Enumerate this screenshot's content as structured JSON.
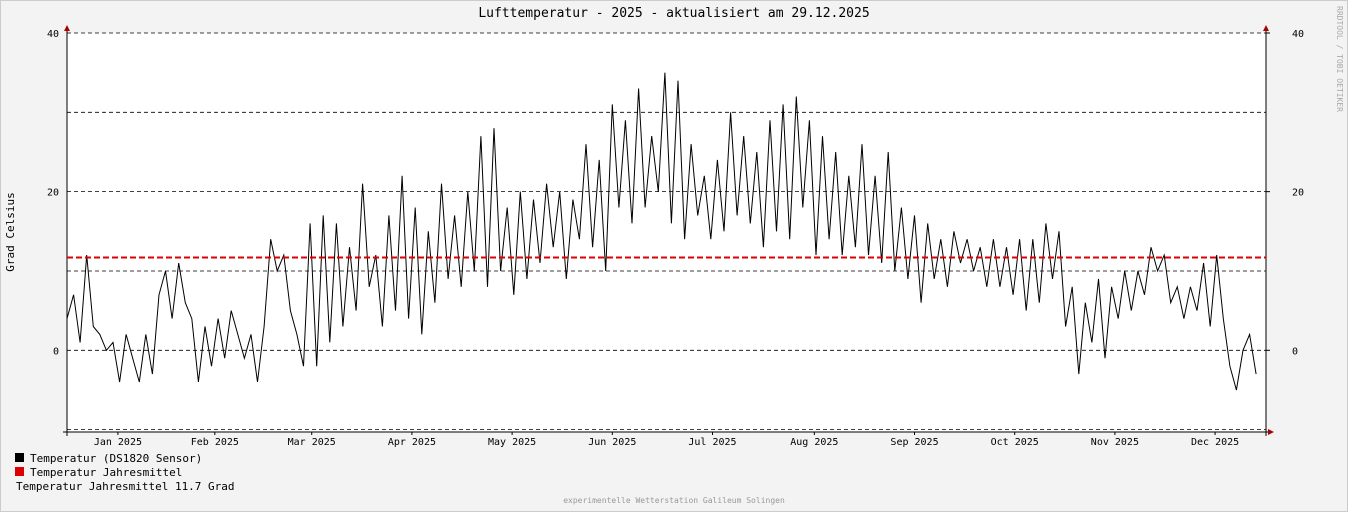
{
  "chart_data": {
    "type": "line",
    "title": "Lufttemperatur - 2025 - aktualisiert am 29.12.2025",
    "y_label": "Grad Celsius",
    "watermark": "RRDTOOL / TOBI OETIKER",
    "footer": "experimentelle Wetterstation Galileum Solingen",
    "xlim": [
      0,
      365
    ],
    "xticks": [
      {
        "value": 15.5,
        "label": "Jan 2025"
      },
      {
        "value": 45,
        "label": "Feb 2025"
      },
      {
        "value": 74.5,
        "label": "Mar 2025"
      },
      {
        "value": 105,
        "label": "Apr 2025"
      },
      {
        "value": 135.5,
        "label": "May 2025"
      },
      {
        "value": 166,
        "label": "Jun 2025"
      },
      {
        "value": 196.5,
        "label": "Jul 2025"
      },
      {
        "value": 227.5,
        "label": "Aug 2025"
      },
      {
        "value": 258,
        "label": "Sep 2025"
      },
      {
        "value": 288.5,
        "label": "Oct 2025"
      },
      {
        "value": 319,
        "label": "Nov 2025"
      },
      {
        "value": 349.5,
        "label": "Dec 2025"
      }
    ],
    "ylim": [
      -10.3,
      40
    ],
    "yticks": [
      0,
      20,
      40
    ],
    "minor_yticks": [
      -10,
      10,
      30
    ],
    "y2lim": [
      -10.3,
      40
    ],
    "y2ticks": [
      0,
      20,
      40
    ],
    "grid": true,
    "x": [
      0,
      2,
      4,
      6,
      8,
      10,
      12,
      14,
      16,
      18,
      20,
      22,
      24,
      26,
      28,
      30,
      32,
      34,
      36,
      38,
      40,
      42,
      44,
      46,
      48,
      50,
      52,
      54,
      56,
      58,
      60,
      62,
      64,
      66,
      68,
      70,
      72,
      74,
      76,
      78,
      80,
      82,
      84,
      86,
      88,
      90,
      92,
      94,
      96,
      98,
      100,
      102,
      104,
      106,
      108,
      110,
      112,
      114,
      116,
      118,
      120,
      122,
      124,
      126,
      128,
      130,
      132,
      134,
      136,
      138,
      140,
      142,
      144,
      146,
      148,
      150,
      152,
      154,
      156,
      158,
      160,
      162,
      164,
      166,
      168,
      170,
      172,
      174,
      176,
      178,
      180,
      182,
      184,
      186,
      188,
      190,
      192,
      194,
      196,
      198,
      200,
      202,
      204,
      206,
      208,
      210,
      212,
      214,
      216,
      218,
      220,
      222,
      224,
      226,
      228,
      230,
      232,
      234,
      236,
      238,
      240,
      242,
      244,
      246,
      248,
      250,
      252,
      254,
      256,
      258,
      260,
      262,
      264,
      266,
      268,
      270,
      272,
      274,
      276,
      278,
      280,
      282,
      284,
      286,
      288,
      290,
      292,
      294,
      296,
      298,
      300,
      302,
      304,
      306,
      308,
      310,
      312,
      314,
      316,
      318,
      320,
      322,
      324,
      326,
      328,
      330,
      332,
      334,
      336,
      338,
      340,
      342,
      344,
      346,
      348,
      350,
      352,
      354,
      356,
      358,
      360,
      362
    ],
    "series": [
      {
        "name": "Temperatur (DS1820 Sensor)",
        "color": "#000000",
        "values": [
          4,
          7,
          1,
          12,
          3,
          2,
          0,
          1,
          -4,
          2,
          -1,
          -4,
          2,
          -3,
          7,
          10,
          4,
          11,
          6,
          4,
          -4,
          3,
          -2,
          4,
          -1,
          5,
          2,
          -1,
          2,
          -4,
          3,
          14,
          10,
          12,
          5,
          2,
          -2,
          16,
          -2,
          17,
          1,
          16,
          3,
          13,
          5,
          21,
          8,
          12,
          3,
          17,
          5,
          22,
          4,
          18,
          2,
          15,
          6,
          21,
          9,
          17,
          8,
          20,
          10,
          27,
          8,
          28,
          10,
          18,
          7,
          20,
          9,
          19,
          11,
          21,
          13,
          20,
          9,
          19,
          14,
          26,
          13,
          24,
          10,
          31,
          18,
          29,
          16,
          33,
          18,
          27,
          20,
          35,
          16,
          34,
          14,
          26,
          17,
          22,
          14,
          24,
          15,
          30,
          17,
          27,
          16,
          25,
          13,
          29,
          15,
          31,
          14,
          32,
          18,
          29,
          12,
          27,
          14,
          25,
          12,
          22,
          13,
          26,
          12,
          22,
          11,
          25,
          10,
          18,
          9,
          17,
          6,
          16,
          9,
          14,
          8,
          15,
          11,
          14,
          10,
          13,
          8,
          14,
          8,
          13,
          7,
          14,
          5,
          14,
          6,
          16,
          9,
          15,
          3,
          8,
          -3,
          6,
          1,
          9,
          -1,
          8,
          4,
          10,
          5,
          10,
          7,
          13,
          10,
          12,
          6,
          8,
          4,
          8,
          5,
          11,
          3,
          12,
          4,
          -2,
          -5,
          0,
          2,
          -3
        ]
      },
      {
        "name": "Temperatur Jahresmittel",
        "color": "#dd0000",
        "value": 11.7
      }
    ],
    "mean_label": "Temperatur Jahresmittel 11.7 Grad"
  }
}
